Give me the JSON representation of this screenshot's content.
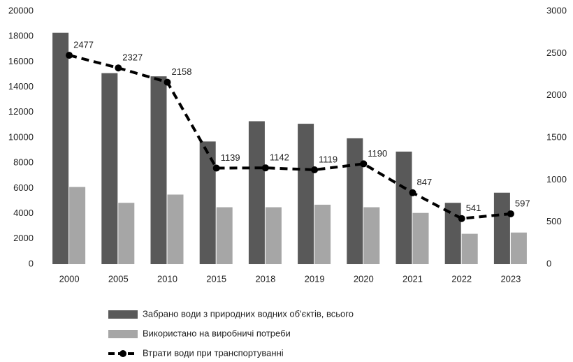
{
  "chart_data": {
    "type": "bar",
    "categories": [
      "2000",
      "2005",
      "2010",
      "2015",
      "2018",
      "2019",
      "2020",
      "2021",
      "2022",
      "2023"
    ],
    "series": [
      {
        "name": "Забрано води з природних водних об'єктів, всього",
        "color": "#595959",
        "values": [
          18300,
          15100,
          14850,
          9700,
          11300,
          11100,
          9950,
          8900,
          4850,
          5650
        ]
      },
      {
        "name": "Використано на виробничі потреби",
        "color": "#a6a6a6",
        "values": [
          6100,
          4850,
          5500,
          4500,
          4500,
          4700,
          4500,
          4050,
          2400,
          2500
        ]
      },
      {
        "name": "Втрати води при транспортуванні",
        "color": "#000000",
        "type": "line",
        "axis": "y2",
        "dashed": true,
        "values": [
          2477,
          2327,
          2158,
          1139,
          1142,
          1119,
          1190,
          847,
          541,
          597
        ]
      }
    ],
    "ylim": [
      0,
      20000
    ],
    "yticks": [
      0,
      2000,
      4000,
      6000,
      8000,
      10000,
      12000,
      14000,
      16000,
      18000,
      20000
    ],
    "y2lim": [
      0,
      3000
    ],
    "y2ticks": [
      0,
      500,
      1000,
      1500,
      2000,
      2500,
      3000
    ],
    "grid": false,
    "legend": "bottom"
  }
}
